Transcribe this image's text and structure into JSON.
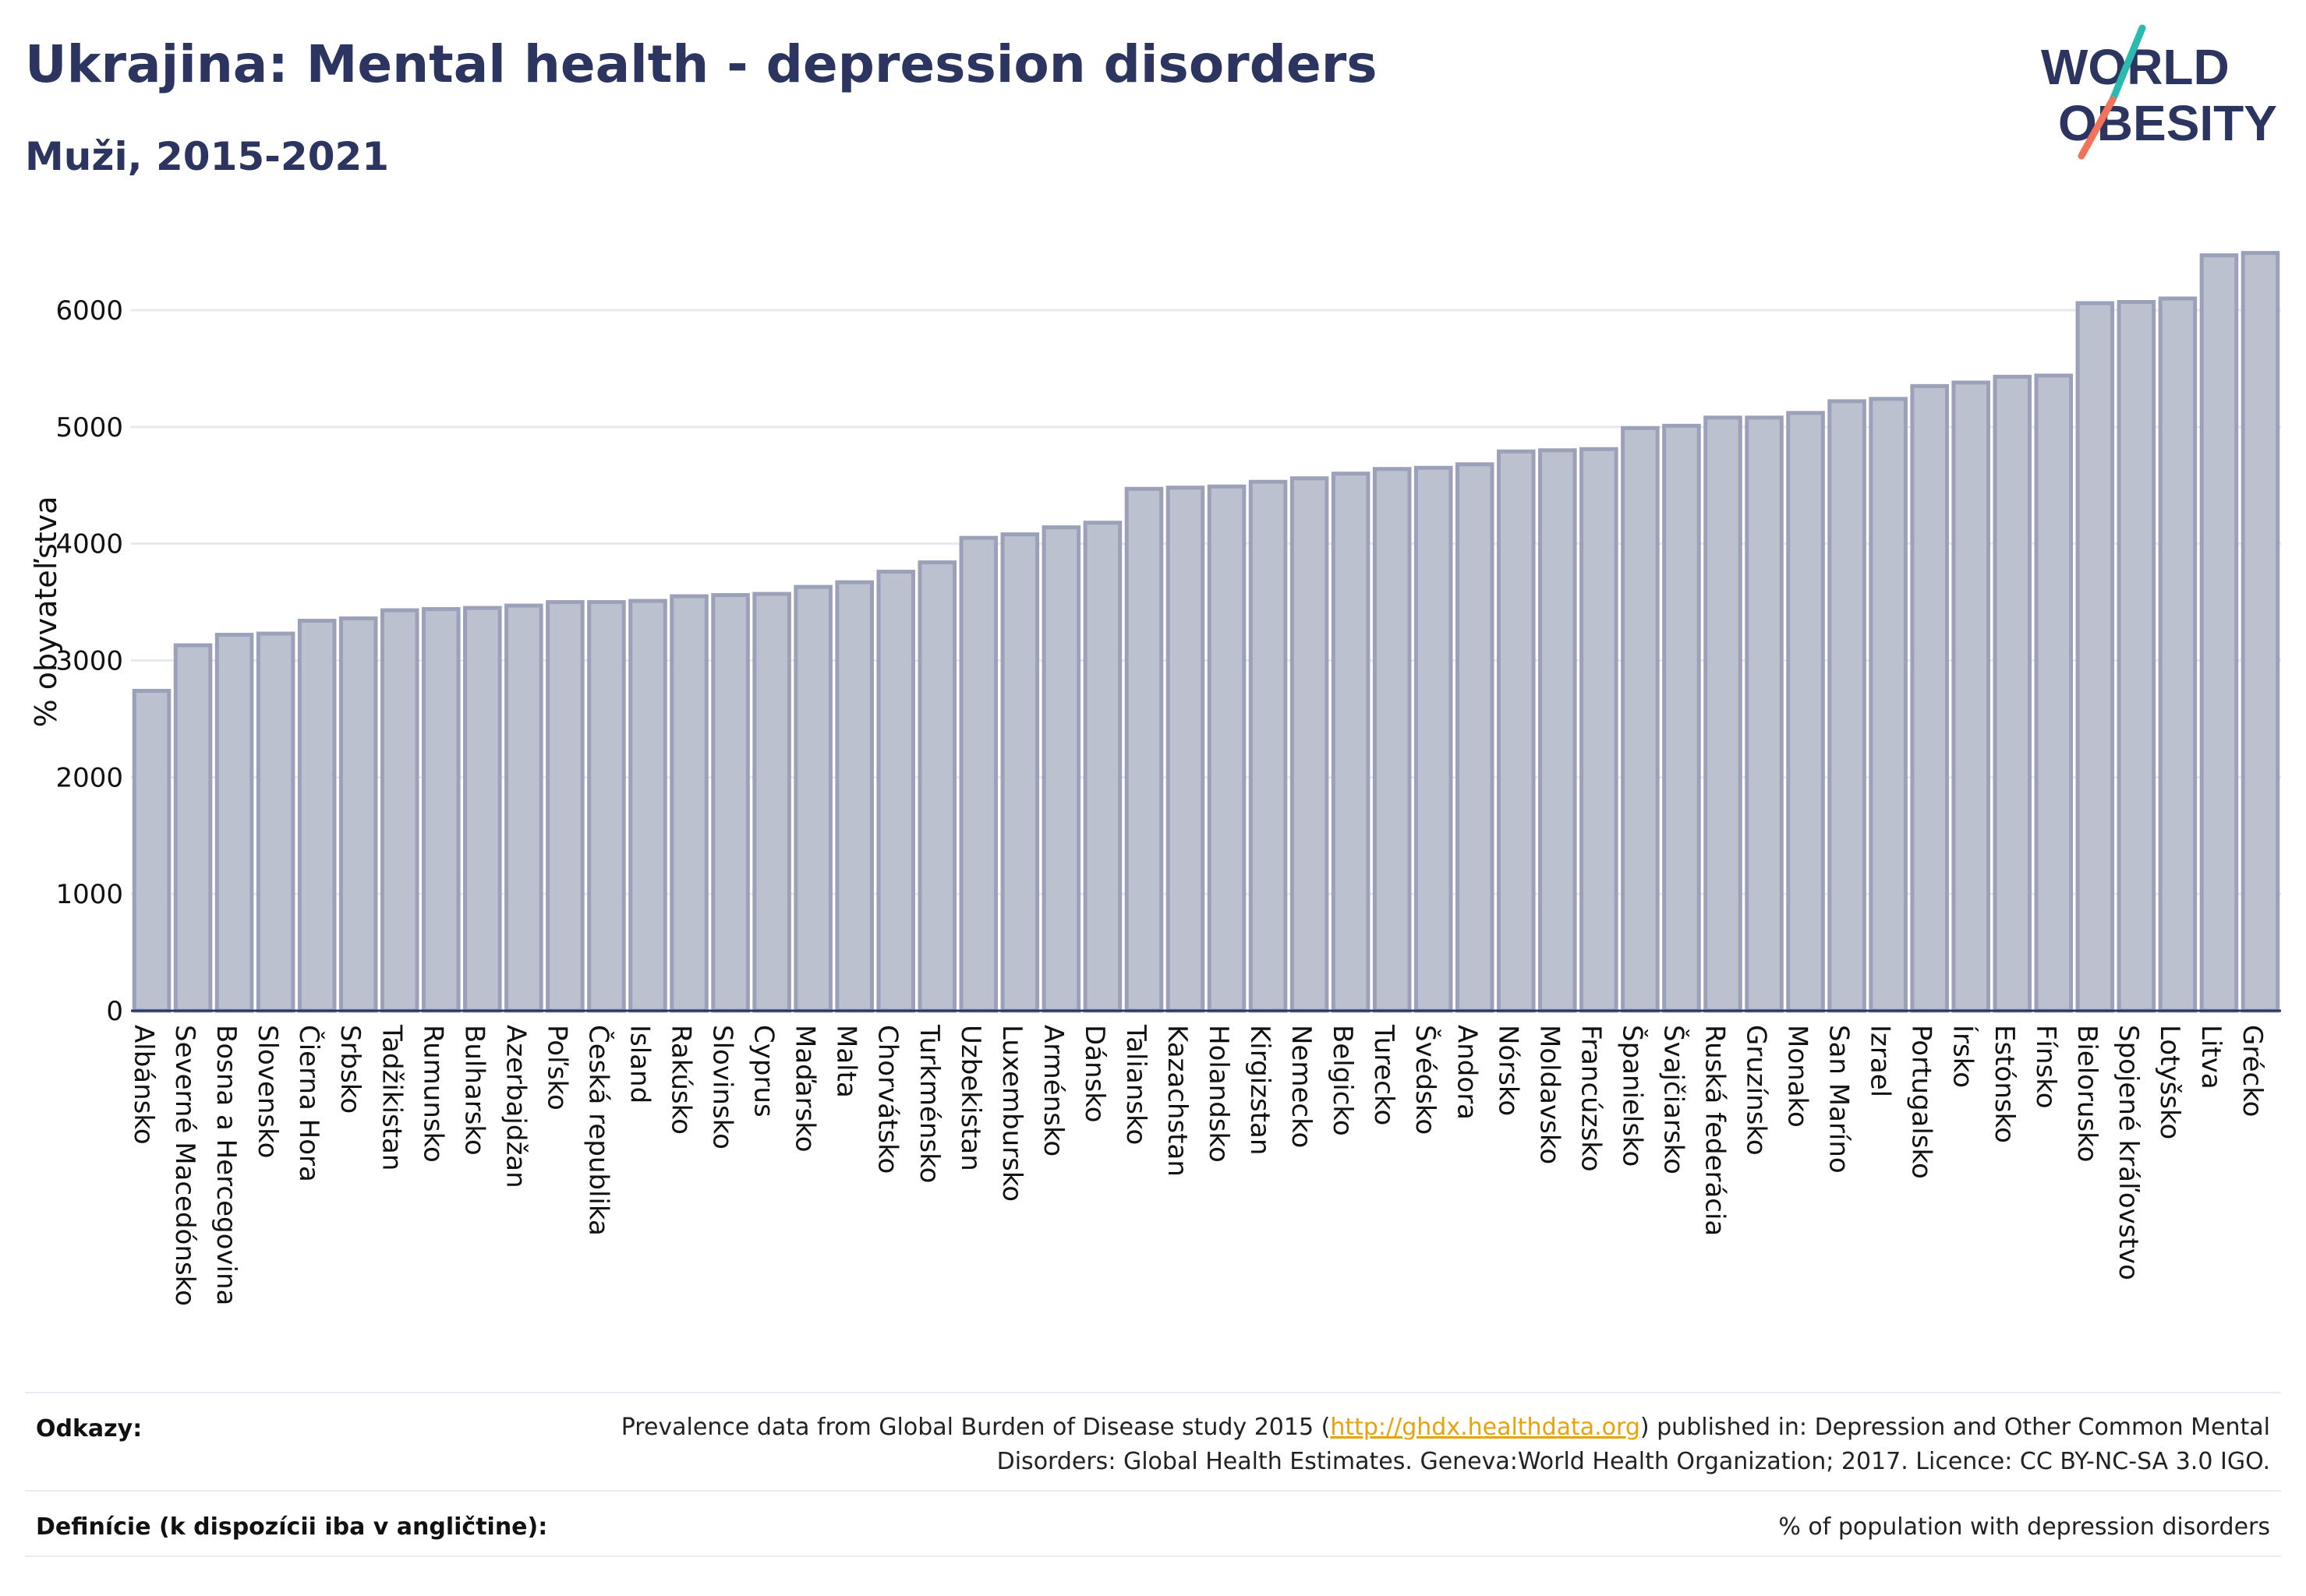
{
  "title": "Ukrajina: Mental health - depression disorders",
  "subtitle": "Muži, 2015-2021",
  "logo": {
    "line1": "WORLD",
    "line2": "OBESITY"
  },
  "chart_data": {
    "type": "bar",
    "ylabel": "% obyvateľstva",
    "xlabel": "",
    "ylim": [
      0,
      6700
    ],
    "yticks": [
      0,
      1000,
      2000,
      3000,
      4000,
      5000,
      6000
    ],
    "grid": true,
    "bar_color": "#bcc1d0",
    "bar_border": "#9aa1b8",
    "categories": [
      "Albánsko",
      "Severné Macedónsko",
      "Bosna a Hercegovina",
      "Slovensko",
      "Čierna Hora",
      "Srbsko",
      "Tadžikistan",
      "Rumunsko",
      "Bulharsko",
      "Azerbajdžan",
      "Poľsko",
      "Česká republika",
      "Island",
      "Rakúsko",
      "Slovinsko",
      "Cyprus",
      "Maďarsko",
      "Malta",
      "Chorvátsko",
      "Turkménsko",
      "Uzbekistan",
      "Luxembursko",
      "Arménsko",
      "Dánsko",
      "Taliansko",
      "Kazachstan",
      "Holandsko",
      "Kirgizstan",
      "Nemecko",
      "Belgicko",
      "Turecko",
      "Švédsko",
      "Andora",
      "Nórsko",
      "Moldavsko",
      "Francúzsko",
      "Španielsko",
      "Švajčiarsko",
      "Ruská federácia",
      "Gruzínsko",
      "Monako",
      "San Maríno",
      "Izrael",
      "Portugalsko",
      "Írsko",
      "Estónsko",
      "Fínsko",
      "Bielorusko",
      "Spojené kráľovstvo",
      "Lotyšsko",
      "Litva",
      "Grécko"
    ],
    "values": [
      2740,
      3130,
      3220,
      3230,
      3340,
      3360,
      3430,
      3440,
      3450,
      3470,
      3500,
      3500,
      3510,
      3550,
      3560,
      3570,
      3630,
      3670,
      3760,
      3840,
      4050,
      4080,
      4140,
      4180,
      4470,
      4480,
      4490,
      4530,
      4560,
      4600,
      4640,
      4650,
      4680,
      4790,
      4800,
      4810,
      4990,
      5010,
      5080,
      5080,
      5120,
      5220,
      5240,
      5350,
      5380,
      5430,
      5440,
      6060,
      6070,
      6100,
      6470,
      6490
    ]
  },
  "footer": {
    "references_label": "Odkazy:",
    "references_text_before": "Prevalence data from Global Burden of Disease study 2015 (",
    "references_link": "http://ghdx.healthdata.org",
    "references_text_after": ") published in: Depression and Other Common Mental Disorders: Global Health Estimates. Geneva:World Health Organization; 2017. Licence: CC BY-NC-SA 3.0 IGO.",
    "definitions_label": "Definície (k dispozícii iba v angličtine):",
    "definitions_text": "% of population with depression disorders"
  }
}
